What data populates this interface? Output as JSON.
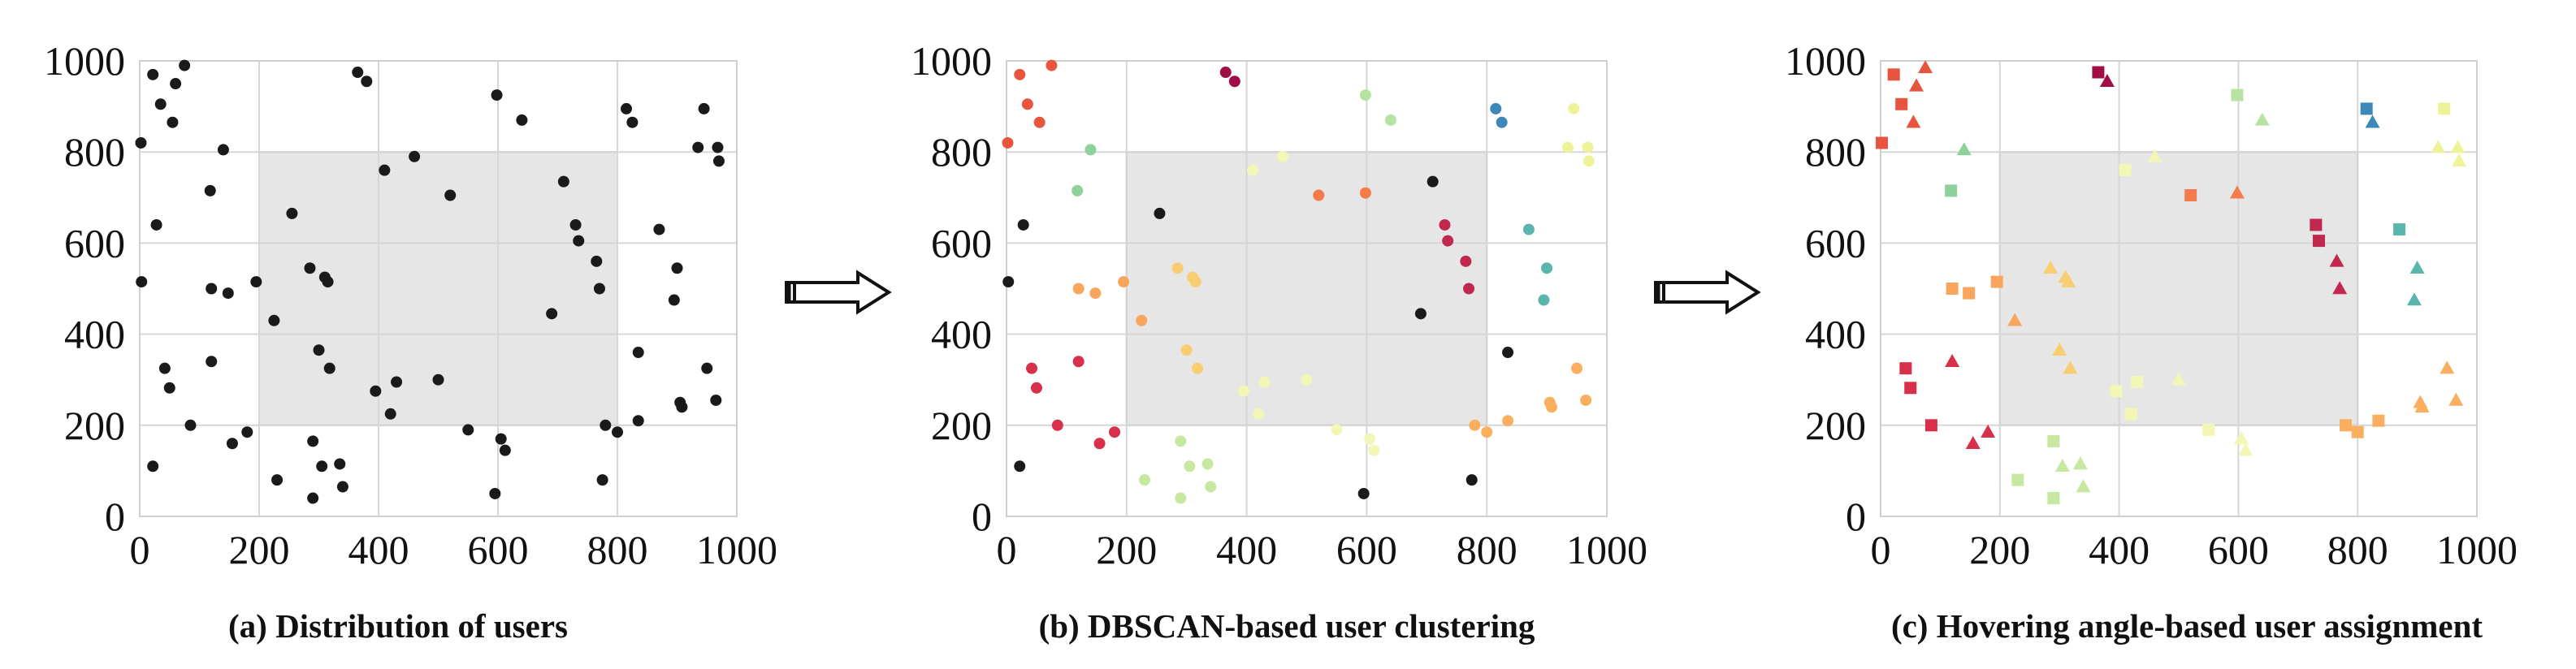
{
  "arrows": [
    {
      "name": "arrow-a-to-b",
      "stroke": "#111111"
    },
    {
      "name": "arrow-b-to-c",
      "stroke": "#111111"
    }
  ],
  "chart_data": [
    {
      "type": "scatter",
      "id": "a",
      "caption": "(a) Distribution of  users",
      "xlim": [
        0,
        1000
      ],
      "ylim": [
        0,
        1000
      ],
      "xticks": [
        "0",
        "200",
        "400",
        "600",
        "800",
        "1000"
      ],
      "yticks": [
        "0",
        "200",
        "400",
        "600",
        "800",
        "1000"
      ],
      "grid": true,
      "highlight_region": {
        "x": [
          200,
          800
        ],
        "y": [
          200,
          800
        ],
        "color": "#e6e6e6"
      },
      "marker_color": "#1a1a1a",
      "points": [
        [
          2,
          820
        ],
        [
          22,
          970
        ],
        [
          60,
          950
        ],
        [
          75,
          990
        ],
        [
          35,
          905
        ],
        [
          55,
          865
        ],
        [
          28,
          640
        ],
        [
          3,
          515
        ],
        [
          22,
          110
        ],
        [
          42,
          325
        ],
        [
          50,
          282
        ],
        [
          85,
          200
        ],
        [
          118,
          715
        ],
        [
          140,
          805
        ],
        [
          120,
          500
        ],
        [
          148,
          490
        ],
        [
          120,
          340
        ],
        [
          155,
          160
        ],
        [
          180,
          185
        ],
        [
          195,
          515
        ],
        [
          225,
          430
        ],
        [
          255,
          665
        ],
        [
          285,
          545
        ],
        [
          310,
          525
        ],
        [
          315,
          515
        ],
        [
          300,
          365
        ],
        [
          318,
          325
        ],
        [
          290,
          165
        ],
        [
          305,
          110
        ],
        [
          335,
          115
        ],
        [
          340,
          65
        ],
        [
          290,
          40
        ],
        [
          230,
          80
        ],
        [
          365,
          975
        ],
        [
          380,
          955
        ],
        [
          395,
          275
        ],
        [
          410,
          760
        ],
        [
          420,
          225
        ],
        [
          430,
          295
        ],
        [
          460,
          790
        ],
        [
          500,
          300
        ],
        [
          520,
          705
        ],
        [
          550,
          190
        ],
        [
          598,
          925
        ],
        [
          605,
          170
        ],
        [
          612,
          145
        ],
        [
          595,
          50
        ],
        [
          640,
          870
        ],
        [
          690,
          445
        ],
        [
          710,
          735
        ],
        [
          730,
          640
        ],
        [
          735,
          605
        ],
        [
          765,
          560
        ],
        [
          770,
          500
        ],
        [
          780,
          200
        ],
        [
          800,
          185
        ],
        [
          775,
          80
        ],
        [
          815,
          895
        ],
        [
          825,
          865
        ],
        [
          835,
          360
        ],
        [
          835,
          210
        ],
        [
          870,
          630
        ],
        [
          895,
          475
        ],
        [
          900,
          545
        ],
        [
          905,
          250
        ],
        [
          908,
          240
        ],
        [
          945,
          895
        ],
        [
          950,
          325
        ],
        [
          935,
          810
        ],
        [
          968,
          810
        ],
        [
          970,
          780
        ],
        [
          965,
          255
        ]
      ]
    },
    {
      "type": "scatter",
      "id": "b",
      "caption": "(b) DBSCAN-based  user clustering",
      "xlim": [
        0,
        1000
      ],
      "ylim": [
        0,
        1000
      ],
      "xticks": [
        "0",
        "200",
        "400",
        "600",
        "800",
        "1000"
      ],
      "yticks": [
        "0",
        "200",
        "400",
        "600",
        "800",
        "1000"
      ],
      "grid": true,
      "highlight_region": {
        "x": [
          200,
          800
        ],
        "y": [
          200,
          800
        ],
        "color": "#e6e6e6"
      },
      "noise_color": "#1a1a1a",
      "clusters": [
        {
          "color": "#e8553e",
          "points": [
            [
              2,
              820
            ],
            [
              22,
              970
            ],
            [
              35,
              905
            ],
            [
              55,
              865
            ],
            [
              75,
              990
            ]
          ]
        },
        {
          "color": "#d8304a",
          "points": [
            [
              42,
              325
            ],
            [
              50,
              282
            ],
            [
              85,
              200
            ],
            [
              155,
              160
            ],
            [
              180,
              185
            ],
            [
              120,
              340
            ]
          ]
        },
        {
          "color": "#a10d45",
          "points": [
            [
              365,
              975
            ],
            [
              380,
              955
            ]
          ]
        },
        {
          "color": "#8ed19b",
          "points": [
            [
              118,
              715
            ],
            [
              140,
              805
            ]
          ]
        },
        {
          "color": "#f8a55d",
          "points": [
            [
              120,
              500
            ],
            [
              148,
              490
            ],
            [
              195,
              515
            ],
            [
              225,
              430
            ]
          ]
        },
        {
          "color": "#f9cd72",
          "points": [
            [
              285,
              545
            ],
            [
              310,
              525
            ],
            [
              315,
              515
            ],
            [
              300,
              365
            ],
            [
              318,
              325
            ]
          ]
        },
        {
          "color": "#c6e8a0",
          "points": [
            [
              230,
              80
            ],
            [
              290,
              165
            ],
            [
              290,
              40
            ],
            [
              305,
              110
            ],
            [
              335,
              115
            ],
            [
              340,
              65
            ]
          ]
        },
        {
          "color": "#f3f7b5",
          "points": [
            [
              410,
              760
            ],
            [
              460,
              790
            ],
            [
              395,
              275
            ],
            [
              420,
              225
            ],
            [
              430,
              295
            ],
            [
              500,
              300
            ],
            [
              550,
              190
            ],
            [
              605,
              170
            ],
            [
              612,
              145
            ]
          ]
        },
        {
          "color": "#b7e3a2",
          "points": [
            [
              598,
              925
            ],
            [
              640,
              870
            ]
          ]
        },
        {
          "color": "#f67b4a",
          "points": [
            [
              520,
              705
            ],
            [
              598,
              710
            ]
          ]
        },
        {
          "color": "#c1284e",
          "points": [
            [
              730,
              640
            ],
            [
              735,
              605
            ],
            [
              765,
              560
            ],
            [
              770,
              500
            ]
          ]
        },
        {
          "color": "#3c88b8",
          "points": [
            [
              815,
              895
            ],
            [
              825,
              865
            ]
          ]
        },
        {
          "color": "#5ab6ad",
          "points": [
            [
              870,
              630
            ],
            [
              895,
              475
            ],
            [
              900,
              545
            ]
          ]
        },
        {
          "color": "#f9af5e",
          "points": [
            [
              780,
              200
            ],
            [
              800,
              185
            ],
            [
              835,
              210
            ],
            [
              905,
              250
            ],
            [
              908,
              240
            ],
            [
              950,
              325
            ],
            [
              965,
              255
            ]
          ]
        },
        {
          "color": "#eef399",
          "points": [
            [
              945,
              895
            ],
            [
              935,
              810
            ],
            [
              968,
              810
            ],
            [
              970,
              780
            ]
          ]
        }
      ],
      "noise": [
        [
          3,
          515
        ],
        [
          22,
          110
        ],
        [
          28,
          640
        ],
        [
          255,
          665
        ],
        [
          595,
          50
        ],
        [
          690,
          445
        ],
        [
          710,
          735
        ],
        [
          775,
          80
        ],
        [
          835,
          360
        ]
      ]
    },
    {
      "type": "scatter",
      "id": "c",
      "caption": "(c) Hovering angle-based  user assignment",
      "xlim": [
        0,
        1000
      ],
      "ylim": [
        0,
        1000
      ],
      "xticks": [
        "0",
        "200",
        "400",
        "600",
        "800",
        "1000"
      ],
      "yticks": [
        "0",
        "200",
        "400",
        "600",
        "800",
        "1000"
      ],
      "grid": true,
      "highlight_region": {
        "x": [
          200,
          800
        ],
        "y": [
          200,
          800
        ],
        "color": "#e6e6e6"
      },
      "markers": [
        "square",
        "triangle"
      ],
      "clusters": [
        {
          "color": "#e8553e",
          "points": [
            [
              2,
              820,
              "s"
            ],
            [
              22,
              970,
              "s"
            ],
            [
              35,
              905,
              "s"
            ],
            [
              55,
              865,
              "t"
            ],
            [
              75,
              985,
              "t"
            ],
            [
              60,
              945,
              "t"
            ]
          ]
        },
        {
          "color": "#d8304a",
          "points": [
            [
              42,
              325,
              "s"
            ],
            [
              50,
              282,
              "s"
            ],
            [
              85,
              200,
              "s"
            ],
            [
              155,
              160,
              "t"
            ],
            [
              180,
              185,
              "t"
            ],
            [
              120,
              340,
              "t"
            ]
          ]
        },
        {
          "color": "#a10d45",
          "points": [
            [
              365,
              975,
              "s"
            ],
            [
              380,
              955,
              "t"
            ]
          ]
        },
        {
          "color": "#8ed19b",
          "points": [
            [
              118,
              715,
              "s"
            ],
            [
              140,
              805,
              "t"
            ]
          ]
        },
        {
          "color": "#f8a55d",
          "points": [
            [
              120,
              500,
              "s"
            ],
            [
              148,
              490,
              "s"
            ],
            [
              195,
              515,
              "s"
            ],
            [
              225,
              430,
              "t"
            ]
          ]
        },
        {
          "color": "#f9cd72",
          "points": [
            [
              285,
              545,
              "t"
            ],
            [
              310,
              525,
              "t"
            ],
            [
              315,
              515,
              "t"
            ],
            [
              300,
              365,
              "t"
            ],
            [
              318,
              325,
              "t"
            ]
          ]
        },
        {
          "color": "#c6e8a0",
          "points": [
            [
              230,
              80,
              "s"
            ],
            [
              290,
              165,
              "s"
            ],
            [
              290,
              40,
              "s"
            ],
            [
              305,
              110,
              "t"
            ],
            [
              335,
              115,
              "t"
            ],
            [
              340,
              65,
              "t"
            ]
          ]
        },
        {
          "color": "#f3f7b5",
          "points": [
            [
              410,
              760,
              "s"
            ],
            [
              460,
              790,
              "t"
            ],
            [
              395,
              275,
              "s"
            ],
            [
              420,
              225,
              "s"
            ],
            [
              430,
              295,
              "s"
            ],
            [
              500,
              300,
              "t"
            ],
            [
              550,
              190,
              "s"
            ],
            [
              605,
              170,
              "t"
            ],
            [
              612,
              145,
              "t"
            ]
          ]
        },
        {
          "color": "#b7e3a2",
          "points": [
            [
              598,
              925,
              "s"
            ],
            [
              640,
              870,
              "t"
            ]
          ]
        },
        {
          "color": "#f67b4a",
          "points": [
            [
              520,
              705,
              "s"
            ],
            [
              598,
              710,
              "t"
            ]
          ]
        },
        {
          "color": "#c1284e",
          "points": [
            [
              730,
              640,
              "s"
            ],
            [
              735,
              605,
              "s"
            ],
            [
              765,
              560,
              "t"
            ],
            [
              770,
              500,
              "t"
            ]
          ]
        },
        {
          "color": "#3c88b8",
          "points": [
            [
              815,
              895,
              "s"
            ],
            [
              825,
              865,
              "t"
            ]
          ]
        },
        {
          "color": "#5ab6ad",
          "points": [
            [
              870,
              630,
              "s"
            ],
            [
              895,
              475,
              "t"
            ],
            [
              900,
              545,
              "t"
            ]
          ]
        },
        {
          "color": "#f9af5e",
          "points": [
            [
              780,
              200,
              "s"
            ],
            [
              800,
              185,
              "s"
            ],
            [
              835,
              210,
              "s"
            ],
            [
              905,
              250,
              "t"
            ],
            [
              908,
              240,
              "t"
            ],
            [
              950,
              325,
              "t"
            ],
            [
              965,
              255,
              "t"
            ]
          ]
        },
        {
          "color": "#eef399",
          "points": [
            [
              945,
              895,
              "s"
            ],
            [
              935,
              810,
              "t"
            ],
            [
              968,
              810,
              "t"
            ],
            [
              970,
              780,
              "t"
            ]
          ]
        }
      ]
    }
  ]
}
